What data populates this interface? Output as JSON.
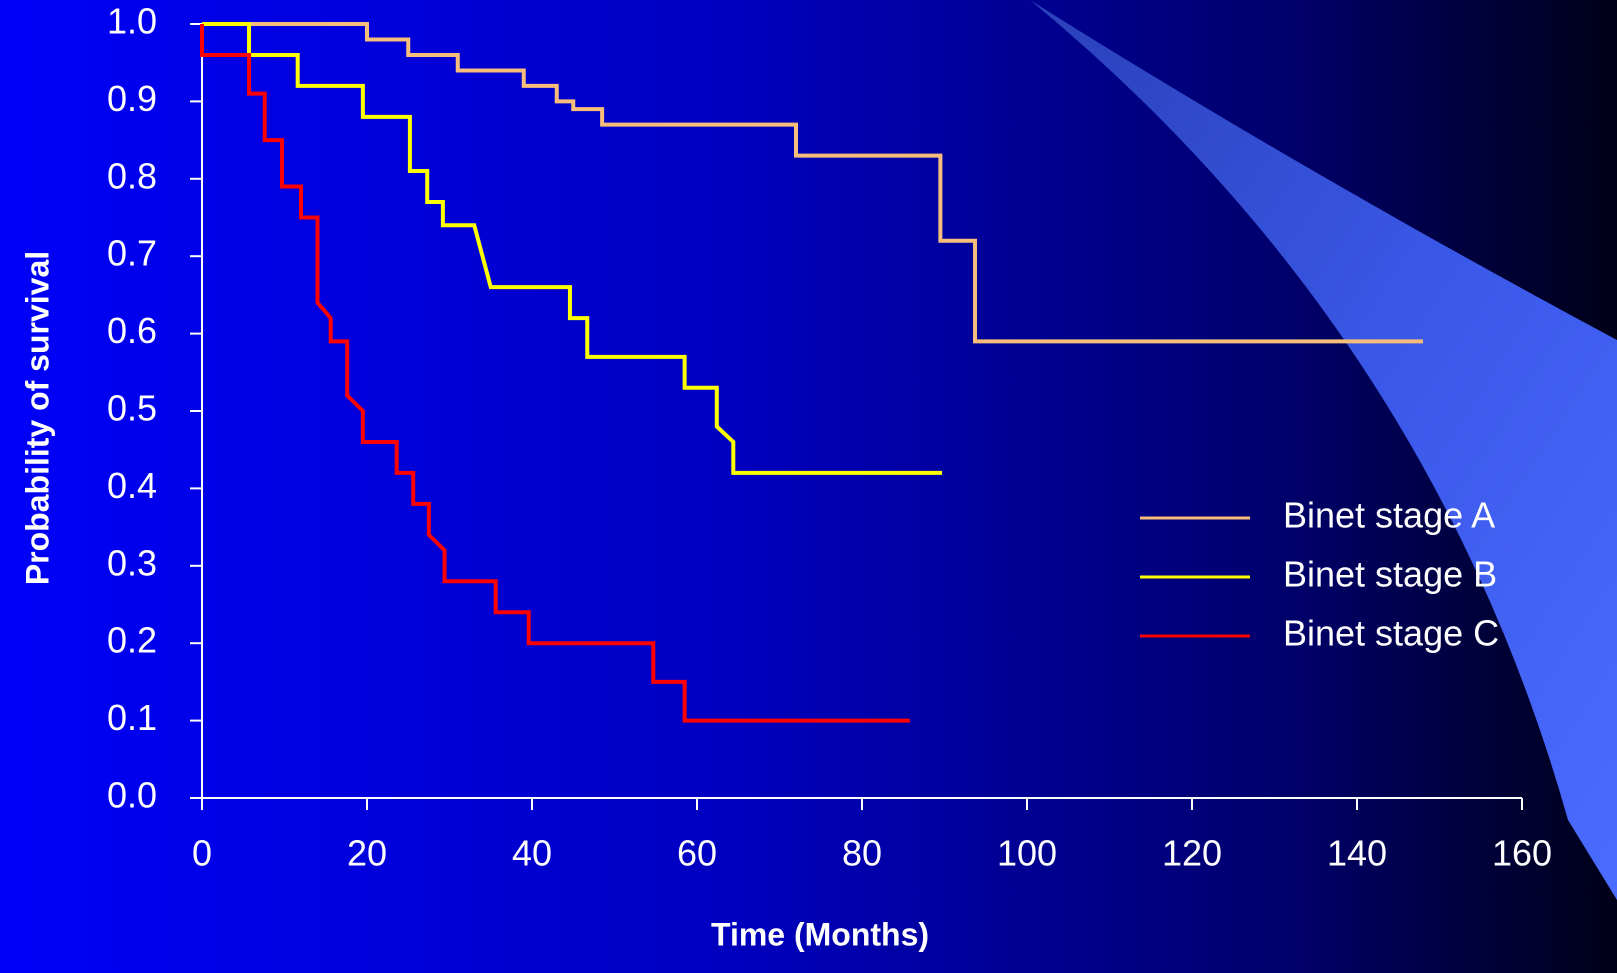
{
  "chart_data": {
    "type": "line",
    "xlabel": "Time (Months)",
    "ylabel": "Probability of survival",
    "xlim": [
      0,
      160
    ],
    "ylim": [
      0,
      1
    ],
    "xticks": [
      0,
      20,
      40,
      60,
      80,
      100,
      120,
      140,
      160
    ],
    "yticks": [
      {
        "value": 0,
        "label": "0.0"
      },
      0.1,
      0.2,
      0.3,
      0.4,
      0.5,
      0.6,
      0.7,
      0.8,
      0.9,
      {
        "value": 1,
        "label": "1.0"
      }
    ],
    "grid": false,
    "legend": "right",
    "series": [
      {
        "name": "Binet stage A",
        "color": "#f7bd7a",
        "x": [
          0,
          20,
          20,
          25,
          25,
          31,
          31,
          39,
          39,
          43,
          43,
          45,
          45,
          48.5,
          48.5,
          72,
          72,
          89.5,
          89.5,
          93.7,
          93.7,
          148
        ],
        "values": [
          1,
          1,
          0.98,
          0.98,
          0.96,
          0.96,
          0.94,
          0.94,
          0.92,
          0.92,
          0.9,
          0.9,
          0.89,
          0.89,
          0.87,
          0.87,
          0.83,
          0.83,
          0.72,
          0.72,
          0.59,
          0.59
        ]
      },
      {
        "name": "Binet stage B",
        "color": "#ffff00",
        "x": [
          0,
          5.7,
          5.7,
          11.6,
          11.6,
          19.5,
          19.5,
          25.2,
          25.2,
          27.3,
          27.3,
          29.2,
          29.2,
          33,
          35,
          44.6,
          44.6,
          46.7,
          46.7,
          58.5,
          58.5,
          62.4,
          62.4,
          64.4,
          64.4,
          89.7
        ],
        "values": [
          1,
          1,
          0.96,
          0.96,
          0.92,
          0.92,
          0.88,
          0.88,
          0.81,
          0.81,
          0.77,
          0.77,
          0.74,
          0.74,
          0.66,
          0.66,
          0.62,
          0.62,
          0.57,
          0.57,
          0.53,
          0.53,
          0.48,
          0.46,
          0.42,
          0.42
        ]
      },
      {
        "name": "Binet stage C",
        "color": "#ff0000",
        "x": [
          0,
          0,
          5.7,
          5.7,
          7.6,
          7.6,
          9.7,
          9.7,
          12,
          12,
          14,
          14,
          15.6,
          15.6,
          17.6,
          17.6,
          19.5,
          19.5,
          23.6,
          23.6,
          25.6,
          25.6,
          27.5,
          27.5,
          29.4,
          29.4,
          35.6,
          35.6,
          39.6,
          39.6,
          54.7,
          54.7,
          58.5,
          58.5,
          85.8
        ],
        "values": [
          1,
          0.96,
          0.96,
          0.91,
          0.91,
          0.85,
          0.85,
          0.79,
          0.79,
          0.75,
          0.75,
          0.64,
          0.62,
          0.59,
          0.59,
          0.52,
          0.5,
          0.46,
          0.46,
          0.42,
          0.42,
          0.38,
          0.38,
          0.34,
          0.32,
          0.28,
          0.28,
          0.24,
          0.24,
          0.2,
          0.2,
          0.15,
          0.15,
          0.1,
          0.1
        ]
      }
    ]
  }
}
